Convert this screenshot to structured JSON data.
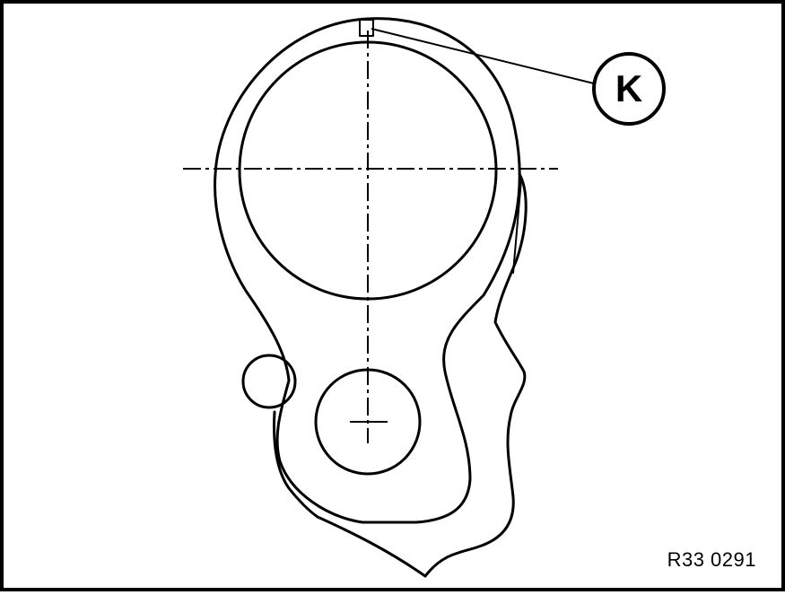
{
  "diagram": {
    "callout": {
      "label": "K"
    },
    "figure_code": "R33 0291"
  },
  "colors": {
    "line": "#000000",
    "background": "#ffffff"
  }
}
